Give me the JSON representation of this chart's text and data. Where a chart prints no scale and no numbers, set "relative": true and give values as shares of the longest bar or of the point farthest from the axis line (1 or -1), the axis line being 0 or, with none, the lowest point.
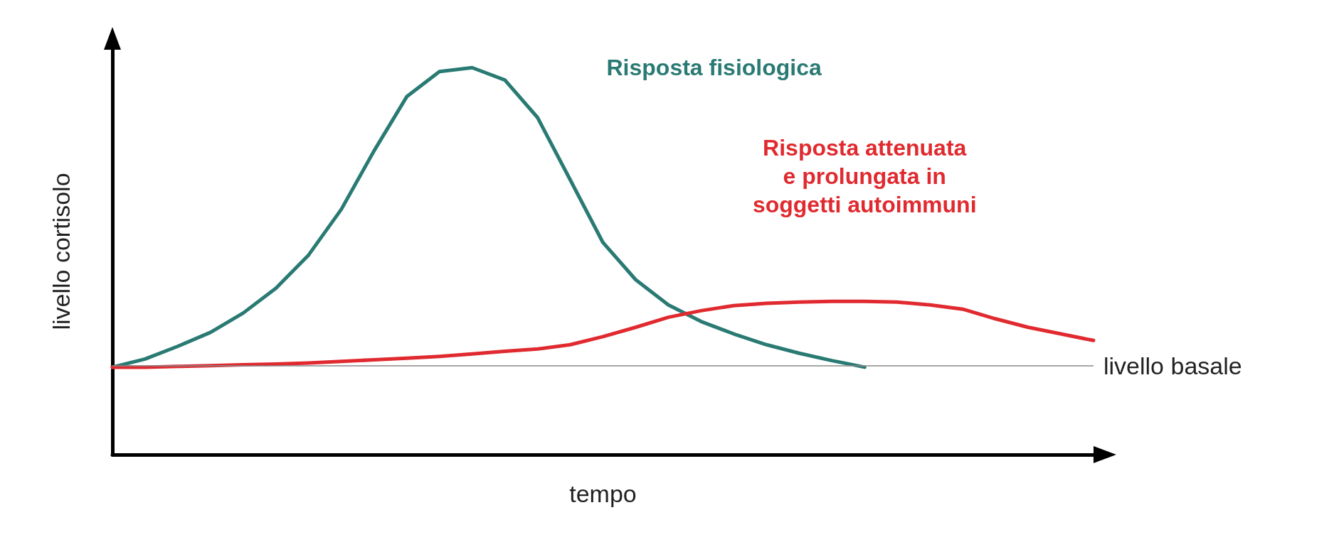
{
  "chart_data": {
    "type": "line",
    "relative": true,
    "xlabel": "tempo",
    "ylabel": "livello cortisolo",
    "categories": [
      null,
      null,
      null,
      null,
      null,
      null,
      null,
      null,
      null,
      null,
      null,
      null,
      null,
      null,
      null,
      null,
      null,
      null,
      null,
      null,
      null,
      null,
      null,
      null,
      null,
      null,
      null,
      null,
      null,
      null,
      null
    ],
    "series": [
      {
        "name": "Risposta fisiologica",
        "color": "#2a7a74",
        "values": [
          0.226,
          0.247,
          0.28,
          0.316,
          0.366,
          0.43,
          0.516,
          0.634,
          0.785,
          0.925,
          0.99,
          1.0,
          0.968,
          0.871,
          0.71,
          0.548,
          0.452,
          0.387,
          0.344,
          0.312,
          0.284,
          0.262,
          0.243,
          0.226,
          null,
          null,
          null,
          null,
          null,
          null,
          null
        ]
      },
      {
        "name": "Risposta attenuata\ne prolungata in\nsoggetti autoimmuni",
        "color": "#e02a2f",
        "values": [
          0.226,
          0.226,
          0.228,
          0.23,
          0.232,
          0.234,
          0.237,
          0.241,
          0.245,
          0.249,
          0.254,
          0.26,
          0.267,
          0.273,
          0.284,
          0.305,
          0.329,
          0.355,
          0.372,
          0.385,
          0.391,
          0.394,
          0.396,
          0.396,
          0.394,
          0.387,
          0.376,
          0.351,
          0.329,
          0.312,
          0.295
        ]
      }
    ],
    "ref_lines": [
      {
        "axis": "y",
        "value": 0.226,
        "label": "livello basale",
        "color": "#888888"
      }
    ],
    "grid": false,
    "legend": false,
    "marker": "none",
    "line_style": "solid"
  }
}
